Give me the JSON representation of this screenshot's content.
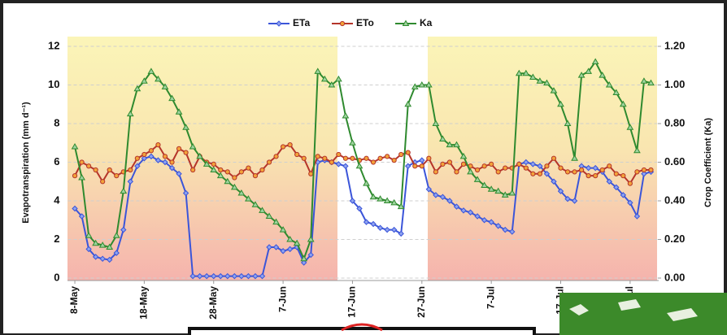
{
  "chart_data": {
    "type": "line",
    "legend": "top",
    "grid": true,
    "ylabel": "Evapotranspiration (mm d⁻¹)",
    "y2label": "Crop Coefficient (Ka)",
    "xlim": [
      -1,
      84
    ],
    "xticks": [
      {
        "value": 0,
        "label": "8-May"
      },
      {
        "value": 10,
        "label": "18-May"
      },
      {
        "value": 20,
        "label": "28-May"
      },
      {
        "value": 30,
        "label": "7-Jun"
      },
      {
        "value": 40,
        "label": "17-Jun"
      },
      {
        "value": 50,
        "label": "27-Jun"
      },
      {
        "value": 60,
        "label": "7-Jul"
      },
      {
        "value": 70,
        "label": "17-Jul"
      },
      {
        "value": 80,
        "label": "27-Jul"
      }
    ],
    "ylim": [
      0,
      12
    ],
    "yticks": [
      0,
      2,
      4,
      6,
      8,
      10,
      12
    ],
    "y2lim": [
      0,
      1.2
    ],
    "y2ticks": [
      {
        "value": 0,
        "label": "0.00"
      },
      {
        "value": 0.2,
        "label": "0.20"
      },
      {
        "value": 0.4,
        "label": "0.40"
      },
      {
        "value": 0.6,
        "label": "0.60"
      },
      {
        "value": 0.8,
        "label": "0.80"
      },
      {
        "value": 1.0,
        "label": "1.00"
      },
      {
        "value": 1.2,
        "label": "1.20"
      }
    ],
    "x": [
      0,
      1,
      2,
      3,
      4,
      5,
      6,
      7,
      8,
      9,
      10,
      11,
      12,
      13,
      14,
      15,
      16,
      17,
      18,
      19,
      20,
      21,
      22,
      23,
      24,
      25,
      26,
      27,
      28,
      29,
      30,
      31,
      32,
      33,
      34,
      35,
      36,
      37,
      38,
      39,
      40,
      41,
      42,
      43,
      44,
      45,
      46,
      47,
      48,
      49,
      50,
      51,
      52,
      53,
      54,
      55,
      56,
      57,
      58,
      59,
      60,
      61,
      62,
      63,
      64,
      65,
      66,
      67,
      68,
      69,
      70,
      71,
      72,
      73,
      74,
      75,
      76,
      77,
      78,
      79,
      80,
      81,
      82,
      83
    ],
    "series": [
      {
        "name": "ETa",
        "color": "#3b55d9",
        "marker": "diamond",
        "values": [
          3.6,
          3.2,
          1.5,
          1.1,
          1.0,
          0.95,
          1.3,
          2.5,
          5.0,
          5.8,
          6.2,
          6.3,
          6.1,
          6.0,
          5.7,
          5.4,
          4.4,
          0.1,
          0.1,
          0.1,
          0.1,
          0.1,
          0.1,
          0.1,
          0.1,
          0.1,
          0.1,
          0.1,
          1.6,
          1.6,
          1.4,
          1.5,
          1.6,
          0.8,
          1.2,
          6.0,
          6.1,
          6.0,
          5.9,
          5.8,
          4.0,
          3.6,
          2.9,
          2.8,
          2.6,
          2.5,
          2.5,
          2.3,
          5.8,
          6.0,
          6.1,
          4.6,
          4.3,
          4.2,
          4.0,
          3.7,
          3.5,
          3.4,
          3.2,
          3.0,
          2.9,
          2.7,
          2.5,
          2.4,
          5.9,
          6.0,
          5.9,
          5.8,
          5.4,
          5.0,
          4.5,
          4.1,
          4.0,
          5.8,
          5.7,
          5.7,
          5.5,
          5.0,
          4.7,
          4.3,
          3.9,
          3.2,
          5.4,
          5.5
        ]
      },
      {
        "name": "ETo",
        "color": "#b5352a",
        "marker": "circle",
        "values": [
          5.3,
          6.0,
          5.8,
          5.6,
          5.0,
          5.6,
          5.3,
          5.5,
          5.6,
          6.2,
          6.4,
          6.6,
          6.9,
          6.3,
          6.0,
          6.7,
          6.5,
          5.6,
          6.3,
          6.0,
          5.9,
          5.6,
          5.5,
          5.2,
          5.5,
          5.7,
          5.3,
          5.6,
          6.0,
          6.3,
          6.8,
          6.9,
          6.4,
          6.2,
          5.4,
          6.3,
          6.2,
          6.0,
          6.4,
          6.2,
          6.2,
          6.1,
          6.2,
          6.0,
          6.2,
          6.3,
          6.1,
          6.4,
          6.5,
          5.8,
          5.8,
          6.2,
          5.5,
          5.9,
          6.0,
          5.5,
          5.9,
          5.8,
          5.6,
          5.8,
          5.9,
          5.5,
          5.7,
          5.7,
          5.9,
          5.7,
          5.4,
          5.4,
          5.8,
          6.2,
          5.7,
          5.5,
          5.5,
          5.6,
          5.3,
          5.3,
          5.6,
          5.8,
          5.4,
          5.3,
          4.9,
          5.5,
          5.6,
          5.6
        ]
      },
      {
        "name": "Ka",
        "color": "#2f8a2f",
        "marker": "triangle",
        "axis": "y2",
        "values": [
          0.68,
          0.52,
          0.22,
          0.18,
          0.17,
          0.16,
          0.22,
          0.45,
          0.85,
          0.98,
          1.02,
          1.07,
          1.03,
          0.99,
          0.93,
          0.86,
          0.78,
          0.68,
          0.63,
          0.59,
          0.56,
          0.53,
          0.5,
          0.47,
          0.44,
          0.41,
          0.38,
          0.35,
          0.32,
          0.29,
          0.25,
          0.2,
          0.18,
          0.1,
          0.2,
          1.07,
          1.03,
          1.0,
          1.03,
          0.84,
          0.7,
          0.58,
          0.49,
          0.42,
          0.41,
          0.4,
          0.39,
          0.37,
          0.9,
          0.99,
          1.0,
          1.0,
          0.8,
          0.72,
          0.69,
          0.69,
          0.63,
          0.55,
          0.51,
          0.48,
          0.46,
          0.45,
          0.43,
          0.44,
          1.06,
          1.06,
          1.04,
          1.02,
          1.01,
          0.97,
          0.9,
          0.8,
          0.62,
          1.05,
          1.07,
          1.12,
          1.05,
          1.0,
          0.96,
          0.9,
          0.78,
          0.66,
          1.02,
          1.01
        ]
      }
    ]
  }
}
